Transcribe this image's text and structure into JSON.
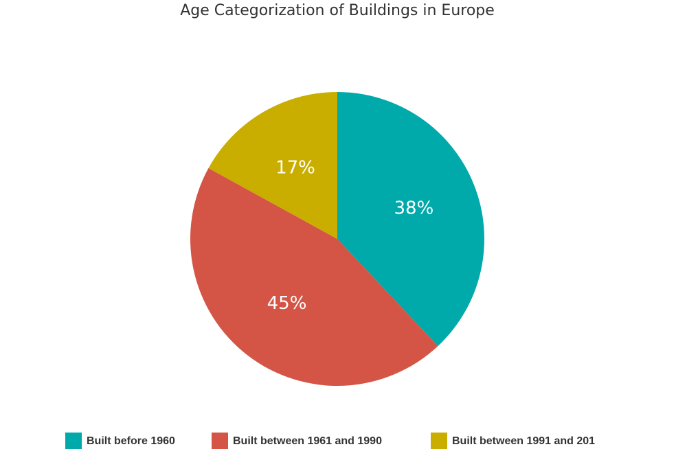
{
  "chart_data": {
    "type": "pie",
    "title": "Age Categorization of Buildings in Europe",
    "categories": [
      "Built before 1960",
      "Built between 1961 and 1990",
      "Built between 1991 and 201"
    ],
    "values": [
      38,
      45,
      17
    ],
    "value_labels": [
      "38%",
      "45%",
      "17%"
    ],
    "colors": [
      "#00a9aa",
      "#d45546",
      "#c9ae00"
    ],
    "legend": "bottom"
  }
}
